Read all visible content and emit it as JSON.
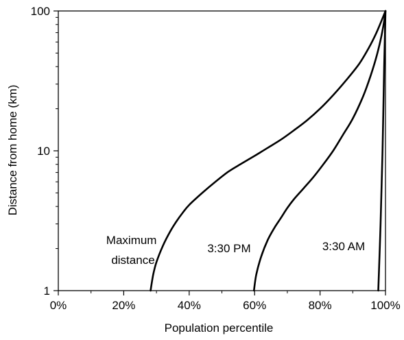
{
  "chart_data": {
    "type": "line",
    "xlabel": "Population percentile",
    "ylabel": "Distance from home (km)",
    "x_scale": "linear",
    "y_scale": "log",
    "xlim": [
      0,
      100
    ],
    "ylim": [
      1,
      100
    ],
    "x_ticks": [
      0,
      20,
      40,
      60,
      80,
      100
    ],
    "x_tick_labels": [
      "0%",
      "20%",
      "40%",
      "60%",
      "80%",
      "100%"
    ],
    "x_minor_ticks": [
      10,
      30,
      50,
      70,
      90
    ],
    "y_ticks": [
      1,
      10,
      100
    ],
    "y_tick_labels": [
      "1",
      "10",
      "100"
    ],
    "y_minor_ticks": [
      2,
      3,
      4,
      5,
      6,
      7,
      8,
      9,
      20,
      30,
      40,
      50,
      60,
      70,
      80,
      90
    ],
    "grid": false,
    "series": [
      {
        "name": "Maximum distance",
        "label_lines": [
          "Maximum",
          "distance"
        ],
        "color": "#000000",
        "points": [
          [
            28.2,
            1.0
          ],
          [
            29.0,
            1.3
          ],
          [
            30.0,
            1.6
          ],
          [
            32.0,
            2.1
          ],
          [
            34.0,
            2.6
          ],
          [
            36.0,
            3.1
          ],
          [
            38.0,
            3.6
          ],
          [
            40.0,
            4.1
          ],
          [
            44.0,
            5.0
          ],
          [
            48.0,
            6.0
          ],
          [
            52.0,
            7.1
          ],
          [
            56.0,
            8.1
          ],
          [
            60.0,
            9.2
          ],
          [
            64.0,
            10.5
          ],
          [
            68.0,
            12.0
          ],
          [
            72.0,
            14.0
          ],
          [
            76.0,
            16.5
          ],
          [
            80.0,
            20.0
          ],
          [
            84.0,
            25.0
          ],
          [
            88.0,
            32.0
          ],
          [
            92.0,
            42.0
          ],
          [
            95.0,
            55.0
          ],
          [
            97.0,
            68.0
          ],
          [
            98.5,
            82.0
          ],
          [
            100.0,
            100.0
          ]
        ]
      },
      {
        "name": "3:30 PM",
        "label_lines": [
          "3:30 PM"
        ],
        "color": "#000000",
        "points": [
          [
            59.8,
            1.0
          ],
          [
            60.5,
            1.3
          ],
          [
            62.0,
            1.75
          ],
          [
            64.0,
            2.3
          ],
          [
            66.0,
            2.8
          ],
          [
            68.0,
            3.3
          ],
          [
            70.0,
            3.9
          ],
          [
            72.0,
            4.5
          ],
          [
            75.0,
            5.4
          ],
          [
            78.0,
            6.5
          ],
          [
            81.0,
            8.0
          ],
          [
            84.0,
            10.0
          ],
          [
            87.0,
            13.0
          ],
          [
            90.0,
            17.0
          ],
          [
            93.0,
            24.0
          ],
          [
            95.0,
            32.0
          ],
          [
            97.0,
            45.0
          ],
          [
            98.5,
            62.0
          ],
          [
            99.5,
            82.0
          ],
          [
            100.0,
            100.0
          ]
        ]
      },
      {
        "name": "3:30 AM",
        "label_lines": [
          "3:30 AM"
        ],
        "color": "#000000",
        "points": [
          [
            97.8,
            1.0
          ],
          [
            98.5,
            3.0
          ],
          [
            99.1,
            10.0
          ],
          [
            99.6,
            40.0
          ],
          [
            100.0,
            100.0
          ]
        ]
      }
    ]
  }
}
